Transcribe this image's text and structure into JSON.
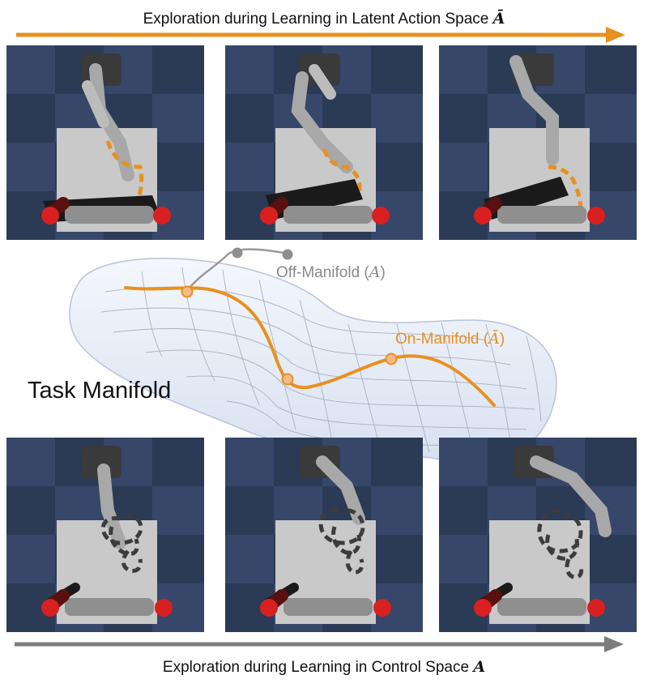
{
  "top_caption": {
    "text": "Exploration during Learning in Latent Action Space",
    "symbol": "Ā"
  },
  "bottom_caption": {
    "text": "Exploration during Learning in Control Space",
    "symbol": "A"
  },
  "manifold": {
    "title": "Task Manifold",
    "off_label": "Off-Manifold (",
    "off_symbol": "A",
    "on_label": "On-Manifold (",
    "on_symbol": "Ā",
    "close_paren": ")"
  },
  "colors": {
    "orange": "#E8901F",
    "gray_arrow": "#7d7d7d",
    "manifold_fill": "#e4ebf7",
    "off_color": "#8a8a8a"
  }
}
